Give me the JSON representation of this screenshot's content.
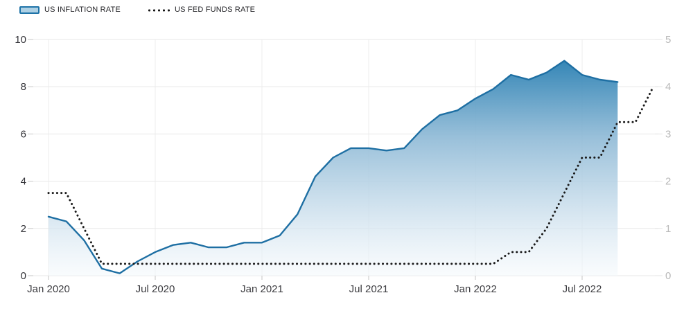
{
  "chart_data": {
    "type": "area",
    "subtype": "combo-dual-axis-monthly-time-series",
    "title": "",
    "x": [
      "Jan 2020",
      "Feb 2020",
      "Mar 2020",
      "Apr 2020",
      "May 2020",
      "Jun 2020",
      "Jul 2020",
      "Aug 2020",
      "Sep 2020",
      "Oct 2020",
      "Nov 2020",
      "Dec 2020",
      "Jan 2021",
      "Feb 2021",
      "Mar 2021",
      "Apr 2021",
      "May 2021",
      "Jun 2021",
      "Jul 2021",
      "Aug 2021",
      "Sep 2021",
      "Oct 2021",
      "Nov 2021",
      "Dec 2021",
      "Jan 2022",
      "Feb 2022",
      "Mar 2022",
      "Apr 2022",
      "May 2022",
      "Jun 2022",
      "Jul 2022",
      "Aug 2022",
      "Sep 2022",
      "Oct 2022",
      "Nov 2022"
    ],
    "series": [
      {
        "name": "US INFLATION RATE",
        "axis": "left",
        "style": "area",
        "color": "#1e6fa3",
        "values": [
          2.5,
          2.3,
          1.5,
          0.3,
          0.1,
          0.6,
          1.0,
          1.3,
          1.4,
          1.2,
          1.2,
          1.4,
          1.4,
          1.7,
          2.6,
          4.2,
          5.0,
          5.4,
          5.4,
          5.3,
          5.4,
          6.2,
          6.8,
          7.0,
          7.5,
          7.9,
          8.5,
          8.3,
          8.6,
          9.1,
          8.5,
          8.3,
          8.2,
          null,
          null
        ]
      },
      {
        "name": "US FED FUNDS RATE",
        "axis": "right",
        "style": "dotted",
        "color": "#1a1a1a",
        "values": [
          1.75,
          1.75,
          1.0,
          0.25,
          0.25,
          0.25,
          0.25,
          0.25,
          0.25,
          0.25,
          0.25,
          0.25,
          0.25,
          0.25,
          0.25,
          0.25,
          0.25,
          0.25,
          0.25,
          0.25,
          0.25,
          0.25,
          0.25,
          0.25,
          0.25,
          0.25,
          0.5,
          0.5,
          1.0,
          1.75,
          2.5,
          2.5,
          3.25,
          3.25,
          4.0
        ]
      }
    ],
    "y_left": {
      "ticks": [
        0,
        2,
        4,
        6,
        8,
        10
      ],
      "range": [
        0,
        10
      ]
    },
    "y_right": {
      "ticks": [
        0,
        1,
        2,
        3,
        4,
        5
      ],
      "range": [
        0,
        5
      ]
    },
    "x_tick_labels": [
      "Jan 2020",
      "Jul 2020",
      "Jan 2021",
      "Jul 2021",
      "Jan 2022",
      "Jul 2022"
    ],
    "x_tick_month_indices": [
      0,
      6,
      12,
      18,
      24,
      30
    ],
    "grid": true,
    "legend_position": "top-left"
  },
  "colors": {
    "line": "#1e6fa3",
    "area_top": "#2e82b4",
    "area_mid": "#8cb8d5",
    "area_low": "#cadeec",
    "area_bottom": "#f4f9fc",
    "dotted": "#1a1a1a",
    "grid": "#e7e7e7",
    "tick_dark": "#c6c6c6",
    "tick_light": "#e3e3e3",
    "axis_left_text": "#333338",
    "axis_right_text": "#b9b9b9",
    "axis_x_text": "#3c3c40",
    "swatch_border": "#1e73a8",
    "swatch_fill": "#add0e4"
  }
}
